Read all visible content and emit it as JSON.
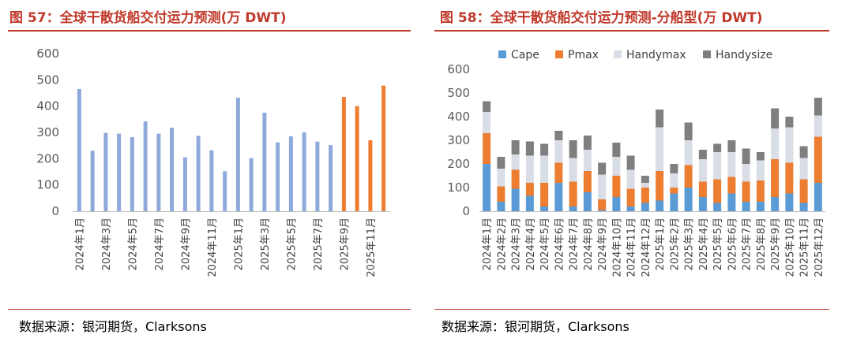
{
  "colors": {
    "title": "#c0392b",
    "rule": "#c0392b",
    "blue": "#8eaadb",
    "orange": "#ed7d31",
    "cape": "#5b9bd5",
    "pmax": "#ed7d31",
    "handymax": "#d9dde6",
    "handysize": "#7f7f7f"
  },
  "left": {
    "title": "图 57：全球干散货船交付运力预测(万 DWT)",
    "source": "数据来源：银河期货，Clarksons"
  },
  "right": {
    "title": "图 58：全球干散货船交付运力预测-分船型(万 DWT)",
    "source": "数据来源：银河期货，Clarksons"
  },
  "chart_data": [
    {
      "type": "bar",
      "title": "",
      "xlabel": "",
      "ylabel": "",
      "ylim": [
        0,
        600
      ],
      "yticks": [
        "0",
        "100",
        "200",
        "300",
        "400",
        "500",
        "600"
      ],
      "grid": false,
      "x_labels_shown": [
        "2024年1月",
        "2024年3月",
        "2024年5月",
        "2024年7月",
        "2024年9月",
        "2024年11月",
        "2025年1月",
        "2025年3月",
        "2025年5月",
        "2025年7月",
        "2025年9月",
        "2025年11月"
      ],
      "categories": [
        "2024-01",
        "2024-02",
        "2024-03",
        "2024-04",
        "2024-05",
        "2024-06",
        "2024-07",
        "2024-08",
        "2024-09",
        "2024-10",
        "2024-11",
        "2024-12",
        "2025-01",
        "2025-02",
        "2025-03",
        "2025-04",
        "2025-05",
        "2025-06",
        "2025-07",
        "2025-08",
        "2025-09",
        "2025-10",
        "2025-11",
        "2025-12"
      ],
      "values": [
        465,
        230,
        298,
        295,
        282,
        342,
        295,
        318,
        205,
        287,
        232,
        152,
        432,
        202,
        375,
        262,
        285,
        300,
        265,
        252,
        435,
        400,
        270,
        478
      ],
      "highlight_from_index": 20
    },
    {
      "type": "bar",
      "stacked": true,
      "title": "",
      "xlabel": "",
      "ylabel": "",
      "ylim": [
        0,
        600
      ],
      "yticks": [
        "0",
        "100",
        "200",
        "300",
        "400",
        "500",
        "600"
      ],
      "grid": false,
      "legend_position": "top",
      "categories": [
        "2024年1月",
        "2024年2月",
        "2024年3月",
        "2024年4月",
        "2024年5月",
        "2024年6月",
        "2024年7月",
        "2024年8月",
        "2024年9月",
        "2024年10月",
        "2024年11月",
        "2024年12月",
        "2025年1月",
        "2025年2月",
        "2025年3月",
        "2025年4月",
        "2025年5月",
        "2025年6月",
        "2025年7月",
        "2025年8月",
        "2025年9月",
        "2025年10月",
        "2025年11月",
        "2025年12月"
      ],
      "series": [
        {
          "name": "Cape",
          "values": [
            200,
            40,
            95,
            65,
            20,
            120,
            20,
            80,
            5,
            60,
            20,
            35,
            45,
            75,
            100,
            60,
            35,
            75,
            40,
            40,
            60,
            75,
            35,
            120
          ]
        },
        {
          "name": "Pmax",
          "values": [
            130,
            65,
            80,
            55,
            100,
            85,
            105,
            90,
            45,
            90,
            75,
            65,
            125,
            25,
            95,
            65,
            100,
            70,
            85,
            90,
            160,
            130,
            100,
            195
          ]
        },
        {
          "name": "Handymax",
          "values": [
            90,
            75,
            65,
            115,
            115,
            95,
            100,
            90,
            105,
            80,
            80,
            20,
            185,
            60,
            105,
            95,
            115,
            105,
            75,
            85,
            130,
            150,
            90,
            90
          ]
        },
        {
          "name": "Handysize",
          "values": [
            45,
            50,
            60,
            60,
            50,
            40,
            75,
            60,
            50,
            60,
            60,
            30,
            75,
            40,
            75,
            40,
            35,
            50,
            65,
            35,
            85,
            45,
            50,
            75
          ]
        }
      ]
    }
  ]
}
